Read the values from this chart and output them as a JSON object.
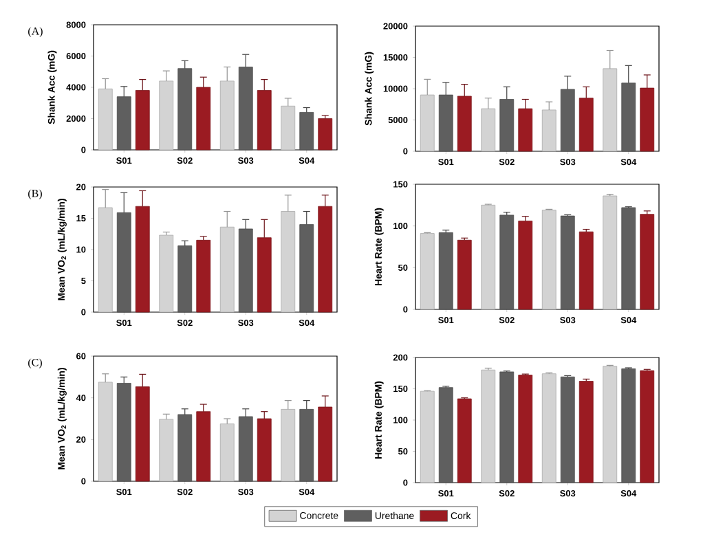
{
  "chart_data": [
    {
      "type": "bar",
      "annotations": [
        "(A)"
      ],
      "ylabel": "Shank Acc (mG)",
      "categories": [
        "S01",
        "S02",
        "S03",
        "S04"
      ],
      "ylim": [
        0,
        8000
      ],
      "yticks": [
        0,
        2000,
        4000,
        6000,
        8000
      ],
      "grid": false,
      "legend": false,
      "series": [
        {
          "color": "#d3d3d3",
          "values": [
            3900,
            4400,
            4400,
            2800
          ],
          "errors": [
            650,
            650,
            900,
            500
          ]
        },
        {
          "color": "#5f5f5f",
          "values": [
            3400,
            5200,
            5300,
            2400
          ],
          "errors": [
            650,
            500,
            800,
            300
          ]
        },
        {
          "color": "#9b1b22",
          "values": [
            3800,
            4000,
            3800,
            2000
          ],
          "errors": [
            700,
            650,
            700,
            200
          ]
        }
      ]
    },
    {
      "type": "bar",
      "ylabel": "Shank Acc (mG)",
      "categories": [
        "S01",
        "S02",
        "S03",
        "S04"
      ],
      "ylim": [
        0,
        20000
      ],
      "yticks": [
        0,
        5000,
        10000,
        15000,
        20000
      ],
      "grid": false,
      "legend": false,
      "series": [
        {
          "color": "#d3d3d3",
          "values": [
            9000,
            6800,
            6600,
            13200
          ],
          "errors": [
            2500,
            1700,
            1300,
            2900
          ]
        },
        {
          "color": "#5f5f5f",
          "values": [
            9000,
            8300,
            9900,
            10900
          ],
          "errors": [
            2000,
            2000,
            2100,
            2800
          ]
        },
        {
          "color": "#9b1b22",
          "values": [
            8800,
            6800,
            8500,
            10100
          ],
          "errors": [
            1900,
            1500,
            1800,
            2100
          ]
        }
      ]
    },
    {
      "type": "bar",
      "annotations": [
        "(B)"
      ],
      "ylabel": "Mean VO$_{2}$ (mL/kg/min)",
      "categories": [
        "S01",
        "S02",
        "S03",
        "S04"
      ],
      "ylim": [
        0,
        20
      ],
      "yticks": [
        0,
        5,
        10,
        15,
        20
      ],
      "grid": false,
      "legend": false,
      "series": [
        {
          "color": "#d3d3d3",
          "values": [
            16.7,
            12.3,
            13.6,
            16.1
          ],
          "errors": [
            2.9,
            0.5,
            2.5,
            2.6
          ]
        },
        {
          "color": "#5f5f5f",
          "values": [
            15.9,
            10.6,
            13.3,
            14.0
          ],
          "errors": [
            3.2,
            0.8,
            1.5,
            2.1
          ]
        },
        {
          "color": "#9b1b22",
          "values": [
            16.9,
            11.5,
            11.9,
            16.9
          ],
          "errors": [
            2.5,
            0.6,
            2.9,
            1.8
          ]
        }
      ]
    },
    {
      "type": "bar",
      "ylabel": "Heart Rate  (BPM)",
      "categories": [
        "S01",
        "S02",
        "S03",
        "S04"
      ],
      "ylim": [
        0,
        150
      ],
      "yticks": [
        0,
        50,
        100,
        150
      ],
      "grid": false,
      "legend": false,
      "series": [
        {
          "color": "#d3d3d3",
          "values": [
            91,
            125,
            119,
            136
          ],
          "errors": [
            1,
            1,
            1,
            2
          ]
        },
        {
          "color": "#5f5f5f",
          "values": [
            92,
            113,
            112,
            122
          ],
          "errors": [
            3,
            3.5,
            1.5,
            1
          ]
        },
        {
          "color": "#9b1b22",
          "values": [
            83,
            106,
            93,
            114
          ],
          "errors": [
            2.5,
            5.5,
            3,
            4
          ]
        }
      ]
    },
    {
      "type": "bar",
      "annotations": [
        "(C)"
      ],
      "ylabel": "Mean VO$_{2}$ (mL/kg/min)",
      "categories": [
        "S01",
        "S02",
        "S03",
        "S04"
      ],
      "ylim": [
        0,
        60
      ],
      "yticks": [
        0,
        20,
        40,
        60
      ],
      "grid": false,
      "legend": "bottom",
      "series": [
        {
          "name": "Concrete",
          "color": "#d3d3d3",
          "values": [
            47.5,
            29.7,
            27.5,
            34.5
          ],
          "errors": [
            4,
            2.5,
            2.5,
            4.2
          ]
        },
        {
          "name": "Urethane",
          "color": "#5f5f5f",
          "values": [
            47,
            32,
            31,
            34.5
          ],
          "errors": [
            3,
            2.7,
            3.7,
            4.2
          ]
        },
        {
          "name": "Cork",
          "color": "#9b1b22",
          "values": [
            45.3,
            33.4,
            30,
            35.6
          ],
          "errors": [
            6,
            3.5,
            3.4,
            5.3
          ]
        }
      ]
    },
    {
      "type": "bar",
      "ylabel": "Heart Rate  (BPM)",
      "categories": [
        "S01",
        "S02",
        "S03",
        "S04"
      ],
      "ylim": [
        0,
        200
      ],
      "yticks": [
        0,
        50,
        100,
        150,
        200
      ],
      "grid": false,
      "legend": false,
      "series": [
        {
          "color": "#d3d3d3",
          "values": [
            146,
            180,
            174,
            186
          ],
          "errors": [
            1,
            3,
            1.5,
            1.5
          ]
        },
        {
          "color": "#5f5f5f",
          "values": [
            152,
            177,
            169,
            182
          ],
          "errors": [
            2,
            1.5,
            2,
            1.5
          ]
        },
        {
          "color": "#9b1b22",
          "values": [
            134,
            172,
            162,
            179
          ],
          "errors": [
            1.5,
            1.5,
            3.5,
            2
          ]
        }
      ]
    }
  ]
}
